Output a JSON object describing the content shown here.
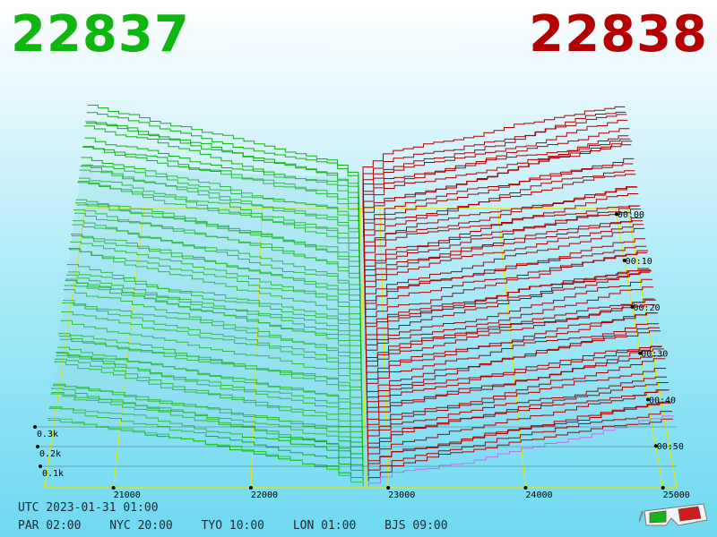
{
  "header": {
    "bid_price": "22837",
    "ask_price": "22838"
  },
  "footer": {
    "utc_label": "UTC 2023-01-31 01:00",
    "zones": [
      {
        "label": "PAR 02:00"
      },
      {
        "label": "NYC 20:00"
      },
      {
        "label": "TYO 10:00"
      },
      {
        "label": "LON 01:00"
      },
      {
        "label": "BJS 09:00"
      }
    ]
  },
  "icons": {
    "glasses": "3d-glasses-icon"
  },
  "chart_data": {
    "type": "line",
    "title": "",
    "xlabel": "",
    "ylabel": "",
    "x_ticks": [
      21000,
      22000,
      23000,
      24000,
      25000
    ],
    "x_range": [
      20500,
      25100
    ],
    "z_ticks": [
      "0.1k",
      "0.2k",
      "0.3k"
    ],
    "z_range": [
      0,
      300
    ],
    "time_ticks": [
      "00:00",
      "00:10",
      "00:20",
      "00:30",
      "00:40",
      "00:50"
    ],
    "mid_price": 22837.5,
    "snapshots": 56,
    "colors": {
      "bid": "#12b312",
      "ask": "#b30000",
      "latest_bid": "#1ed01e",
      "latest_ask": "#c070f0",
      "grid": "#e5e500",
      "axis": "#000000"
    }
  }
}
